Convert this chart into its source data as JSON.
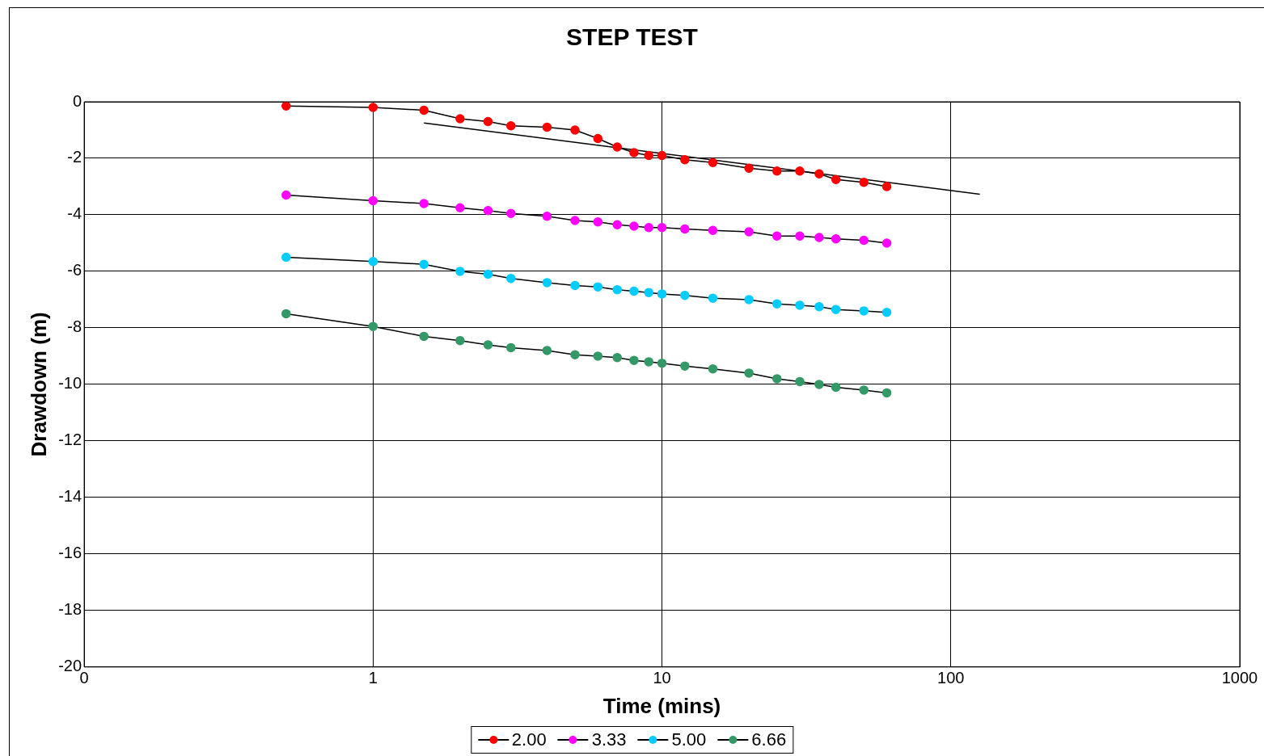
{
  "chart_data": {
    "type": "line",
    "title": "STEP TEST",
    "xlabel": "Time (mins)",
    "ylabel": "Drawdown (m)",
    "log": "x",
    "x": [
      0.5,
      1,
      1.5,
      2,
      2.5,
      3,
      4,
      5,
      6,
      7,
      8,
      9,
      10,
      12,
      15,
      20,
      25,
      30,
      35,
      40,
      50,
      60
    ],
    "series": [
      {
        "name": "2.00",
        "color": "#ff0000",
        "values": [
          -0.15,
          -0.2,
          -0.3,
          -0.6,
          -0.7,
          -0.85,
          -0.9,
          -1.0,
          -1.3,
          -1.6,
          -1.8,
          -1.9,
          -1.9,
          -2.05,
          -2.15,
          -2.35,
          -2.45,
          -2.45,
          -2.55,
          -2.75,
          -2.85,
          -3.0
        ]
      },
      {
        "name": "3.33",
        "color": "#ff00ff",
        "values": [
          -3.3,
          -3.5,
          -3.6,
          -3.75,
          -3.85,
          -3.95,
          -4.05,
          -4.2,
          -4.25,
          -4.35,
          -4.4,
          -4.45,
          -4.45,
          -4.5,
          -4.55,
          -4.6,
          -4.75,
          -4.75,
          -4.8,
          -4.85,
          -4.9,
          -5.0
        ]
      },
      {
        "name": "5.00",
        "color": "#00ccff",
        "values": [
          -5.5,
          -5.65,
          -5.75,
          -6.0,
          -6.1,
          -6.25,
          -6.4,
          -6.5,
          -6.55,
          -6.65,
          -6.7,
          -6.75,
          -6.8,
          -6.85,
          -6.95,
          -7.0,
          -7.15,
          -7.2,
          -7.25,
          -7.35,
          -7.4,
          -7.45
        ]
      },
      {
        "name": "6.66",
        "color": "#339966",
        "values": [
          -7.5,
          -7.95,
          -8.3,
          -8.45,
          -8.6,
          -8.7,
          -8.8,
          -8.95,
          -9.0,
          -9.05,
          -9.15,
          -9.2,
          -9.25,
          -9.35,
          -9.45,
          -9.6,
          -9.8,
          -9.9,
          -10.0,
          -10.1,
          -10.2,
          -10.3
        ]
      },
      {
        "type": "line",
        "color": "#000000",
        "marker": "none",
        "x": [
          1.5,
          126
        ],
        "values": [
          -0.75,
          -3.27
        ]
      }
    ],
    "xlim": [
      0.1,
      1000
    ],
    "xticks": [
      {
        "value": 0.1,
        "label": "0"
      },
      1,
      10,
      100,
      1000
    ],
    "ylim": [
      -20,
      0
    ],
    "yticks": [
      -20,
      -18,
      -16,
      -14,
      -12,
      -10,
      -8,
      -6,
      -4,
      -2,
      0
    ],
    "grid": true,
    "legend": "bottom",
    "marker": "circle",
    "line_style": "solid"
  }
}
